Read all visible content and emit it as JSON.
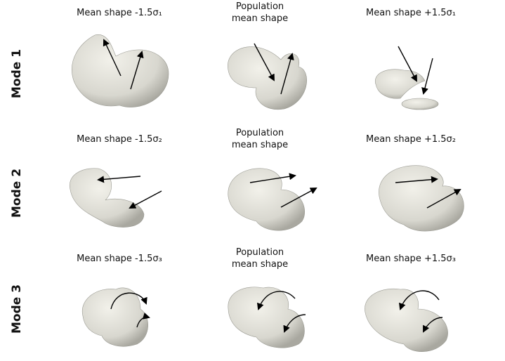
{
  "rows": [
    {
      "label": "Mode 1",
      "headers": [
        [
          "Mean shape -1.5σ₁"
        ],
        [
          "Population",
          "mean shape"
        ],
        [
          "Mean shape +1.5σ₁"
        ]
      ]
    },
    {
      "label": "Mode 2",
      "headers": [
        [
          "Mean shape -1.5σ₂"
        ],
        [
          "Population",
          "mean shape"
        ],
        [
          "Mean shape +1.5σ₂"
        ]
      ]
    },
    {
      "label": "Mode 3",
      "headers": [
        [
          "Mean shape -1.5σ₃"
        ],
        [
          "Population",
          "mean shape"
        ],
        [
          "Mean shape +1.5σ₃"
        ]
      ]
    }
  ]
}
